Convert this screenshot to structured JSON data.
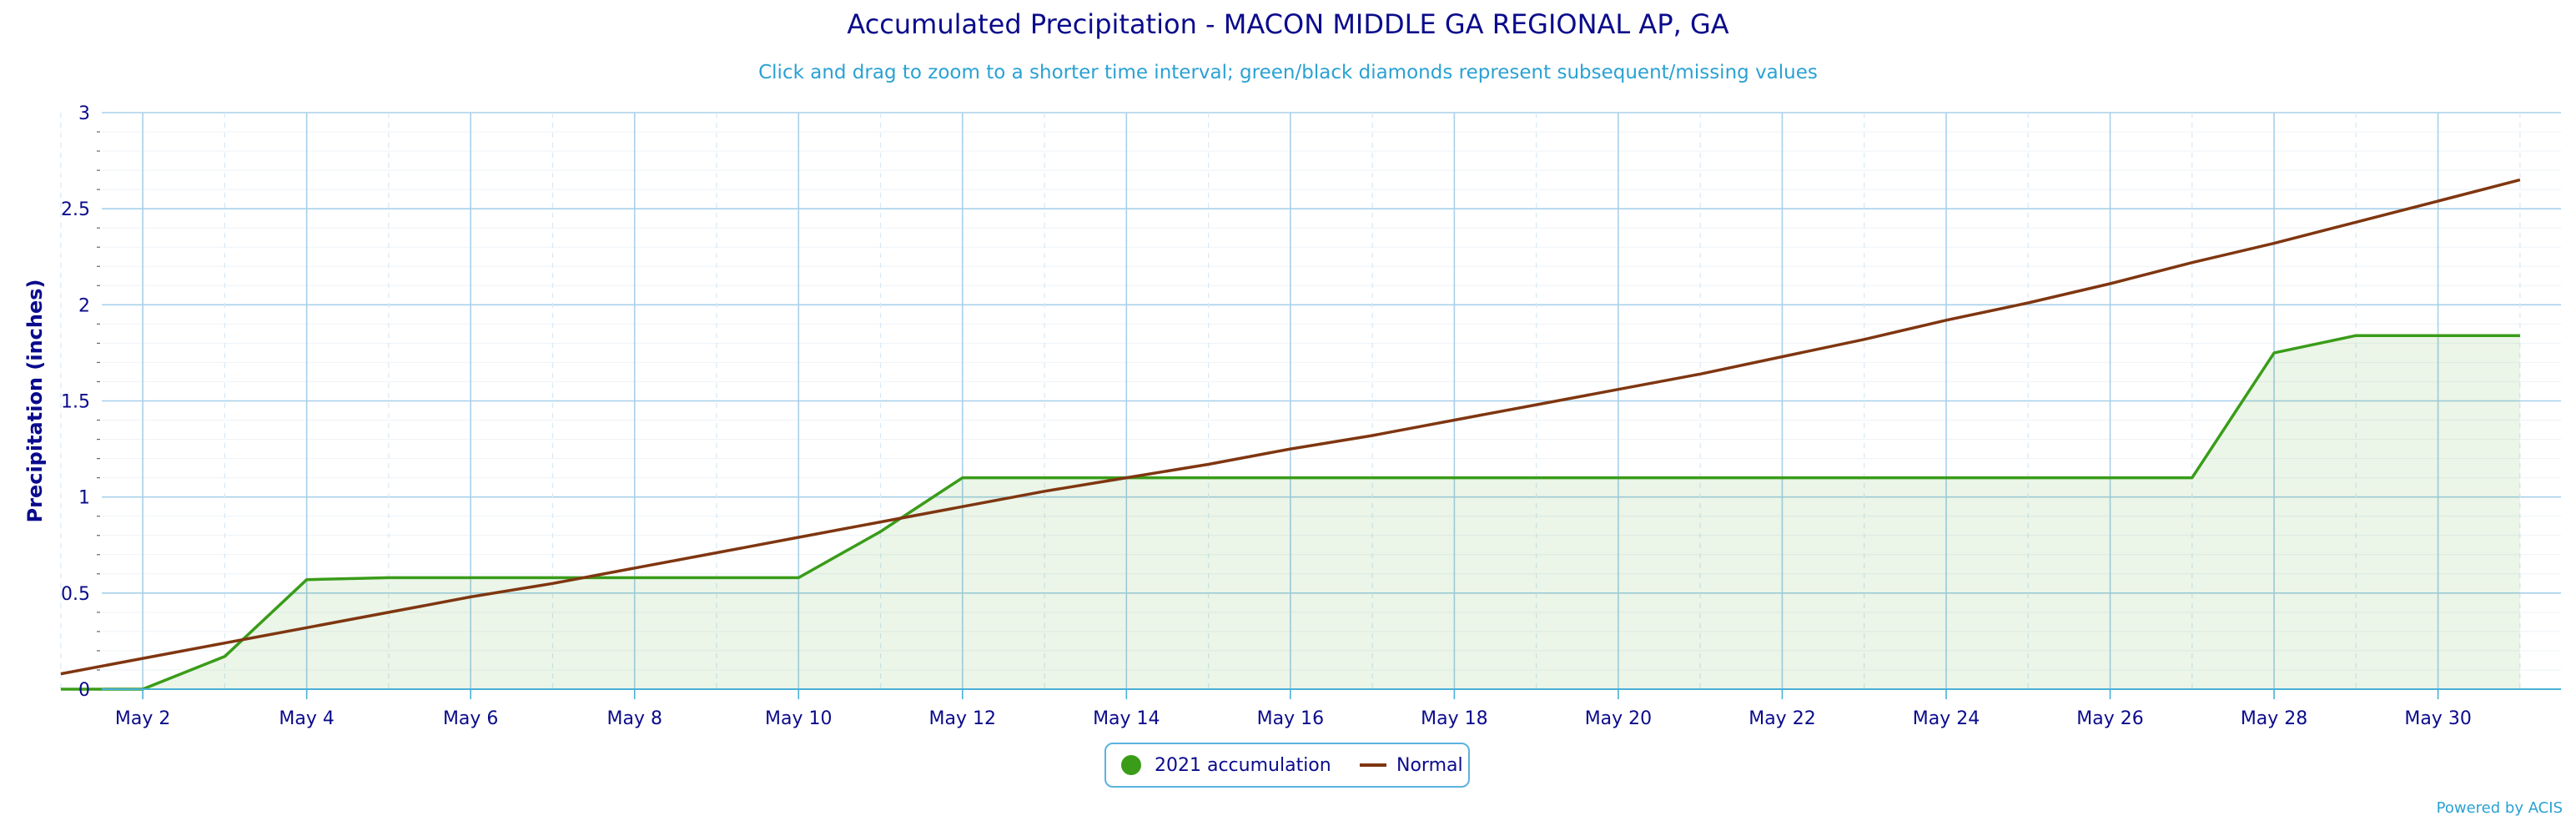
{
  "chart_data": {
    "type": "area",
    "title": "Accumulated Precipitation - MACON MIDDLE GA REGIONAL AP, GA",
    "subtitle": "Click and drag to zoom to a shorter time interval; green/black diamonds represent subsequent/missing values",
    "ylabel": "Precipitation (inches)",
    "xlabel": "",
    "ylim": [
      0,
      3
    ],
    "yticks": [
      "0",
      "0.5",
      "1",
      "1.5",
      "2",
      "2.5",
      "3"
    ],
    "xticks": [
      "May 2",
      "May 4",
      "May 6",
      "May 8",
      "May 10",
      "May 12",
      "May 14",
      "May 16",
      "May 18",
      "May 20",
      "May 22",
      "May 24",
      "May 26",
      "May 28",
      "May 30"
    ],
    "grid": true,
    "legend_position": "bottom",
    "x": [
      "May 1",
      "May 2",
      "May 3",
      "May 4",
      "May 5",
      "May 6",
      "May 7",
      "May 8",
      "May 9",
      "May 10",
      "May 11",
      "May 12",
      "May 13",
      "May 14",
      "May 15",
      "May 16",
      "May 17",
      "May 18",
      "May 19",
      "May 20",
      "May 21",
      "May 22",
      "May 23",
      "May 24",
      "May 25",
      "May 26",
      "May 27",
      "May 28",
      "May 29",
      "May 30",
      "May 31"
    ],
    "series": [
      {
        "name": "2021 accumulation",
        "type": "area",
        "color": "#3a9c19",
        "values": [
          0.0,
          0.0,
          0.17,
          0.57,
          0.58,
          0.58,
          0.58,
          0.58,
          0.58,
          0.58,
          0.82,
          1.1,
          1.1,
          1.1,
          1.1,
          1.1,
          1.1,
          1.1,
          1.1,
          1.1,
          1.1,
          1.1,
          1.1,
          1.1,
          1.1,
          1.1,
          1.1,
          1.75,
          1.84,
          1.84,
          1.84
        ]
      },
      {
        "name": "Normal",
        "type": "line",
        "color": "#7f3610",
        "values": [
          0.08,
          0.16,
          0.24,
          0.32,
          0.4,
          0.48,
          0.55,
          0.63,
          0.71,
          0.79,
          0.87,
          0.95,
          1.03,
          1.1,
          1.17,
          1.25,
          1.32,
          1.4,
          1.48,
          1.56,
          1.64,
          1.73,
          1.82,
          1.92,
          2.01,
          2.11,
          2.22,
          2.32,
          2.43,
          2.54,
          2.65
        ]
      }
    ]
  },
  "legend": {
    "accum_label": "2021 accumulation",
    "normal_label": "Normal"
  },
  "credit": "Powered by ACIS"
}
